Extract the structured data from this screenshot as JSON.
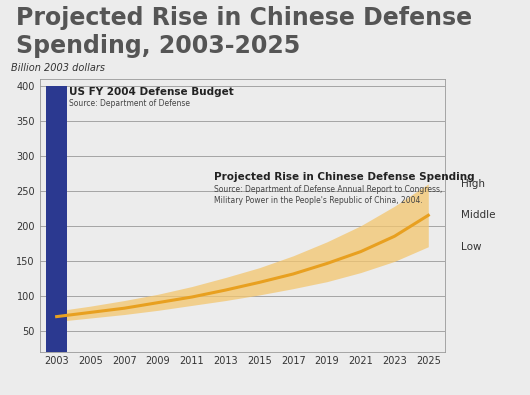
{
  "chart_data": {
    "type": "combo",
    "title": "Projected Rise in Chinese Defense Spending, 2003-2025",
    "y_label": "Billion 2003 dollars",
    "xlim": [
      2002,
      2026
    ],
    "xticks": [
      2003,
      2005,
      2007,
      2009,
      2011,
      2013,
      2015,
      2017,
      2019,
      2021,
      2023,
      2025
    ],
    "ylim": [
      20,
      410
    ],
    "yticks": [
      50,
      100,
      150,
      200,
      250,
      300,
      350,
      400
    ],
    "grid": true,
    "series": [
      {
        "name": "US FY 2004 Defense Budget",
        "type": "bar",
        "color": "#2b3990",
        "source": "Source: Department of Defense",
        "x": [
          2003
        ],
        "values": [
          400
        ]
      },
      {
        "name": "Projected Rise in Chinese Defense Spending",
        "type": "band",
        "color": "#e8a020",
        "band_color": "#f3c66e",
        "source": "Source: Department of Defense Annual Report to Congress,\nMilitary Power in the People's Republic of China, 2004.",
        "band_labels": [
          "High",
          "Middle",
          "Low"
        ],
        "x": [
          2003,
          2005,
          2007,
          2009,
          2011,
          2013,
          2015,
          2017,
          2019,
          2021,
          2023,
          2025
        ],
        "values": [
          70,
          76,
          82,
          90,
          98,
          108,
          119,
          131,
          146,
          163,
          185,
          215
        ],
        "high": [
          78,
          85,
          93,
          102,
          113,
          126,
          140,
          157,
          177,
          200,
          228,
          260
        ],
        "low": [
          63,
          68,
          73,
          79,
          86,
          93,
          101,
          110,
          120,
          133,
          149,
          170
        ]
      }
    ]
  }
}
